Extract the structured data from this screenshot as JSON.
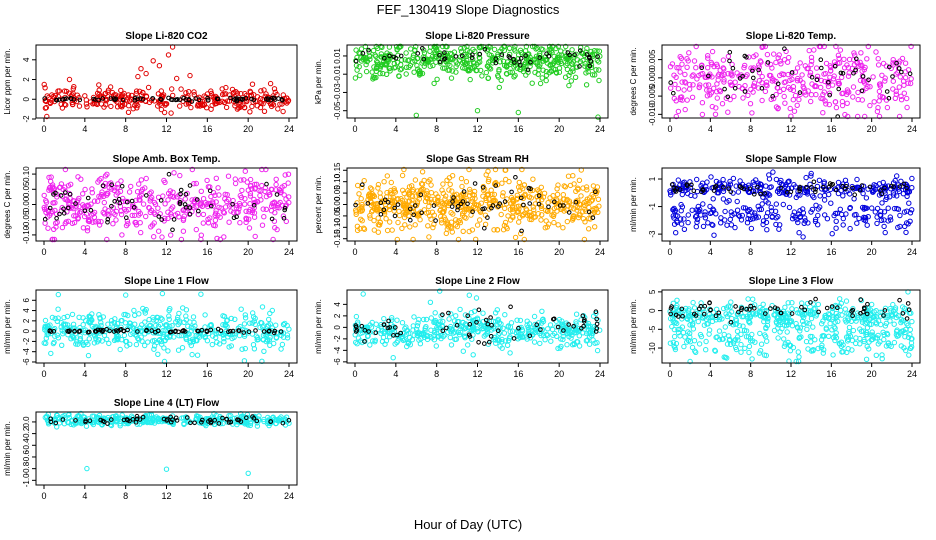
{
  "title": "FEF_130419  Slope Diagnostics",
  "xlabel": "Hour of Day (UTC)",
  "colors": {
    "cloud_black": "#000000"
  },
  "chart_data": [
    {
      "type": "scatter",
      "title": "Slope Li-820 CO2",
      "ylabel": "Licor ppm per min.",
      "color": "#e00000",
      "xlim": [
        0,
        24
      ],
      "ylim": [
        -1.9,
        5.5
      ],
      "x_ticks": [
        0,
        4,
        8,
        12,
        16,
        20,
        24
      ],
      "y_ticks": [
        -2,
        0,
        2,
        4
      ],
      "series": [
        {
          "name": "",
          "center": 0,
          "spread": 0.55,
          "n": 300,
          "outliers": [
            [
              9.2,
              2.3
            ],
            [
              9.5,
              3.1
            ],
            [
              10.0,
              2.6
            ],
            [
              10.7,
              3.9
            ],
            [
              11.3,
              3.4
            ],
            [
              12.2,
              4.5
            ],
            [
              12.6,
              5.3
            ],
            [
              13.0,
              2.1
            ],
            [
              2.5,
              2.0
            ],
            [
              14.3,
              2.4
            ]
          ]
        },
        {
          "name": "",
          "center": 0,
          "spread": 0.08,
          "n": 70
        }
      ]
    },
    {
      "type": "scatter",
      "title": "Slope Li-820 Pressure",
      "ylabel": "kPa per min.",
      "color": "#22cc22",
      "xlim": [
        0,
        24
      ],
      "ylim": [
        -0.058,
        0.022
      ],
      "x_ticks": [
        0,
        4,
        8,
        12,
        16,
        20,
        24
      ],
      "y_ticks": [
        -0.05,
        -0.03,
        -0.01,
        0.01
      ],
      "y_tick_labels": [
        "-0.05",
        "-0.03",
        "-0.01",
        "0.01"
      ],
      "series": [
        {
          "name": "",
          "center": 0.004,
          "spread": 0.01,
          "n": 500,
          "outliers": [
            [
              6.0,
              -0.055
            ],
            [
              12.0,
              -0.05
            ],
            [
              16.0,
              -0.052
            ],
            [
              23.8,
              -0.057
            ]
          ]
        },
        {
          "name": "",
          "center": 0.009,
          "spread": 0.005,
          "n": 50
        }
      ]
    },
    {
      "type": "scatter",
      "title": "Slope Li-820 Temp.",
      "ylabel": "degrees C per min.",
      "color": "#ee22ee",
      "xlim": [
        0,
        24
      ],
      "ylim": [
        -0.011,
        0.009
      ],
      "x_ticks": [
        0,
        4,
        8,
        12,
        16,
        20,
        24
      ],
      "y_ticks": [
        -0.01,
        -0.005,
        0,
        0.005
      ],
      "y_tick_labels": [
        "-0.010",
        "-0.005",
        "0.000",
        "0.005"
      ],
      "series": [
        {
          "name": "",
          "center": -0.001,
          "spread": 0.0045,
          "n": 400
        },
        {
          "name": "",
          "center": -0.001,
          "spread": 0.004,
          "n": 50
        }
      ]
    },
    {
      "type": "scatter",
      "title": "Slope Amb. Box Temp.",
      "ylabel": "degrees C per min.",
      "color": "#ee22ee",
      "xlim": [
        0,
        24
      ],
      "ylim": [
        -0.12,
        0.12
      ],
      "x_ticks": [
        0,
        4,
        8,
        12,
        16,
        20,
        24
      ],
      "y_ticks": [
        -0.1,
        -0.05,
        0,
        0.05,
        0.1
      ],
      "y_tick_labels": [
        "-0.10",
        "-0.05",
        "0.00",
        "0.05",
        "0.10"
      ],
      "series": [
        {
          "name": "",
          "center": 0,
          "spread": 0.05,
          "n": 450
        },
        {
          "name": "",
          "center": 0,
          "spread": 0.04,
          "n": 60
        }
      ]
    },
    {
      "type": "scatter",
      "title": "Slope Gas Stream RH",
      "ylabel": "percent per min.",
      "color": "#ffaa00",
      "xlim": [
        0,
        24
      ],
      "ylim": [
        -0.16,
        0.16
      ],
      "x_ticks": [
        0,
        4,
        8,
        12,
        16,
        20,
        24
      ],
      "y_ticks": [
        -0.15,
        -0.1,
        -0.05,
        0,
        0.05,
        0.1,
        0.15
      ],
      "y_tick_labels": [
        "-0.15",
        "-0.10",
        "-0.05",
        "0.00",
        "0.05",
        "0.10",
        "0.15"
      ],
      "series": [
        {
          "name": "",
          "center": 0,
          "spread": 0.06,
          "n": 600
        },
        {
          "name": "",
          "center": 0,
          "spread": 0.05,
          "n": 60
        }
      ]
    },
    {
      "type": "scatter",
      "title": "Slope Sample Flow",
      "ylabel": "ml/min per min.",
      "color": "#0000dd",
      "xlim": [
        0,
        24
      ],
      "ylim": [
        -3.5,
        1.8
      ],
      "x_ticks": [
        0,
        4,
        8,
        12,
        16,
        20,
        24
      ],
      "y_ticks": [
        -3,
        -1,
        1
      ],
      "series": [
        {
          "name": "",
          "center": 0.3,
          "spread": 0.35,
          "n": 250
        },
        {
          "name": "",
          "center": -1.7,
          "spread": 0.55,
          "n": 200,
          "outliers": [
            [
              9.8,
              1.3
            ],
            [
              10.2,
              1.5
            ],
            [
              11.0,
              0.9
            ],
            [
              13.5,
              1.1
            ],
            [
              14.0,
              1.4
            ],
            [
              13.2,
              -3.2
            ],
            [
              12.8,
              -2.9
            ]
          ]
        },
        {
          "name": "",
          "center": 0.3,
          "spread": 0.2,
          "n": 60
        }
      ]
    },
    {
      "type": "scatter",
      "title": "Slope Line 1 Flow",
      "ylabel": "ml/min per min.",
      "color": "#22eeee",
      "xlim": [
        0,
        24
      ],
      "ylim": [
        -6.2,
        8
      ],
      "x_ticks": [
        0,
        4,
        8,
        12,
        16,
        20,
        24
      ],
      "y_ticks": [
        -6,
        -4,
        -2,
        0,
        2,
        4,
        6
      ],
      "series": [
        {
          "name": "",
          "center": 0,
          "spread": 1.9,
          "n": 450,
          "outliers": [
            [
              1.4,
              7.1
            ],
            [
              8.0,
              7.0
            ],
            [
              11.6,
              7.3
            ],
            [
              11.8,
              -5.9
            ]
          ]
        },
        {
          "name": "",
          "center": 0,
          "spread": 0.15,
          "n": 70
        }
      ]
    },
    {
      "type": "scatter",
      "title": "Slope Line 2 Flow",
      "ylabel": "ml/min per min.",
      "color": "#22eeee",
      "xlim": [
        0,
        24
      ],
      "ylim": [
        -6.2,
        6.5
      ],
      "x_ticks": [
        0,
        4,
        8,
        12,
        16,
        20,
        24
      ],
      "y_ticks": [
        -6,
        -4,
        -2,
        0,
        2,
        4
      ],
      "series": [
        {
          "name": "",
          "center": -0.6,
          "spread": 1.5,
          "n": 450,
          "outliers": [
            [
              0.8,
              5.8
            ],
            [
              8.3,
              6.3
            ],
            [
              11.2,
              5.6
            ],
            [
              11.9,
              5.1
            ]
          ]
        },
        {
          "name": "",
          "center": 0,
          "spread": 1.2,
          "n": 60
        }
      ]
    },
    {
      "type": "scatter",
      "title": "Slope Line 3 Flow",
      "ylabel": "ml/min per min.",
      "color": "#22eeee",
      "xlim": [
        0,
        24
      ],
      "ylim": [
        -14,
        5.5
      ],
      "x_ticks": [
        0,
        4,
        8,
        12,
        16,
        20,
        24
      ],
      "y_ticks": [
        -10,
        -5,
        0,
        5
      ],
      "series": [
        {
          "name": "",
          "center": -1.5,
          "spread": 1.8,
          "n": 350
        },
        {
          "name": "",
          "center": -8,
          "spread": 2.3,
          "n": 220,
          "outliers": [
            [
              11.8,
              -13.5
            ],
            [
              19.5,
              -13.0
            ],
            [
              5.5,
              -12.5
            ],
            [
              23.6,
              5.0
            ]
          ]
        },
        {
          "name": "",
          "center": 0.3,
          "spread": 1.4,
          "n": 60
        }
      ]
    },
    {
      "type": "scatter",
      "title": "Slope Line 4 (LT) Flow",
      "ylabel": "ml/min per min.",
      "color": "#22eeee",
      "xlim": [
        0,
        24
      ],
      "ylim": [
        -1.08,
        0.17
      ],
      "x_ticks": [
        0,
        4,
        8,
        12,
        16,
        20,
        24
      ],
      "y_ticks": [
        -1,
        -0.8,
        -0.6,
        -0.4,
        -0.2,
        0
      ],
      "y_tick_labels": [
        "-1.0",
        "-0.8",
        "-0.6",
        "-0.4",
        "-0.2",
        "0.0"
      ],
      "series": [
        {
          "name": "",
          "center": 0.03,
          "spread": 0.045,
          "n": 350,
          "outliers": [
            [
              4.2,
              -0.8
            ],
            [
              12.0,
              -0.81
            ],
            [
              20.0,
              -0.88
            ]
          ]
        },
        {
          "name": "",
          "center": 0.03,
          "spread": 0.03,
          "n": 60
        }
      ]
    }
  ]
}
